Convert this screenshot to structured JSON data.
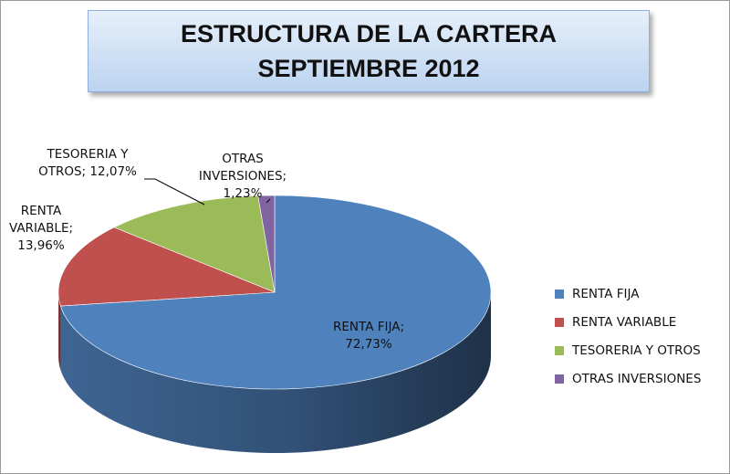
{
  "chart_data": {
    "type": "pie",
    "title": "ESTRUCTURA DE LA CARTERA SEPTIEMBRE 2012",
    "categories": [
      "RENTA FIJA",
      "RENTA VARIABLE",
      "TESORERIA Y OTROS",
      "OTRAS INVERSIONES"
    ],
    "values": [
      72.73,
      13.96,
      12.07,
      1.23
    ],
    "value_format": "percent",
    "data_labels": [
      "RENTA FIJA; 72,73%",
      "RENTA VARIABLE; 13,96%",
      "TESORERIA Y OTROS; 12,07%",
      "OTRAS INVERSIONES; 1,23%"
    ],
    "colors": [
      "#4f81bd",
      "#c0504d",
      "#9bbb59",
      "#8064a2"
    ],
    "style": "3d",
    "legend_position": "right"
  },
  "labels": {
    "renta_fija": [
      "RENTA FIJA;",
      "72,73%"
    ],
    "renta_variable": [
      "RENTA",
      "VARIABLE;",
      "13,96%"
    ],
    "tesoreria": [
      "TESORERIA Y",
      "OTROS; 12,07%"
    ],
    "otras": [
      "OTRAS",
      "INVERSIONES;",
      "1,23%"
    ]
  }
}
